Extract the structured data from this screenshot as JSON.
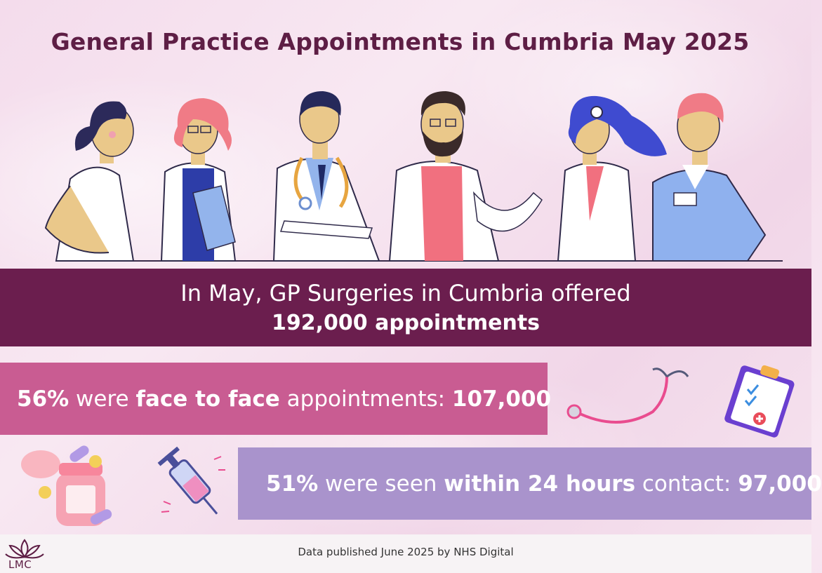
{
  "title": "General Practice Appointments in Cumbria May 2025",
  "banner": {
    "line1": "In May, GP Surgeries in Cumbria offered",
    "line2": "192,000 appointments"
  },
  "face_to_face": {
    "percent": "56%",
    "text1": " were ",
    "emphasis": "face to face",
    "text2": " appointments: ",
    "count": "107,000"
  },
  "within_24h": {
    "percent": "51%",
    "text1": " were seen ",
    "emphasis": "within 24 hours",
    "text2": " contact: ",
    "count": "97,000"
  },
  "footer": {
    "source": "Data published June 2025 by NHS Digital"
  },
  "logo": {
    "text": "LMC"
  },
  "icons": [
    "stethoscope-icon",
    "clipboard-icon",
    "pill-bottle-icon",
    "syringe-icon",
    "lotus-logo-icon"
  ],
  "colors": {
    "title": "#5e1e45",
    "banner": "#6b1e4e",
    "face_to_face_bar": "#c95c92",
    "within_24h_bar": "#a993cc"
  }
}
